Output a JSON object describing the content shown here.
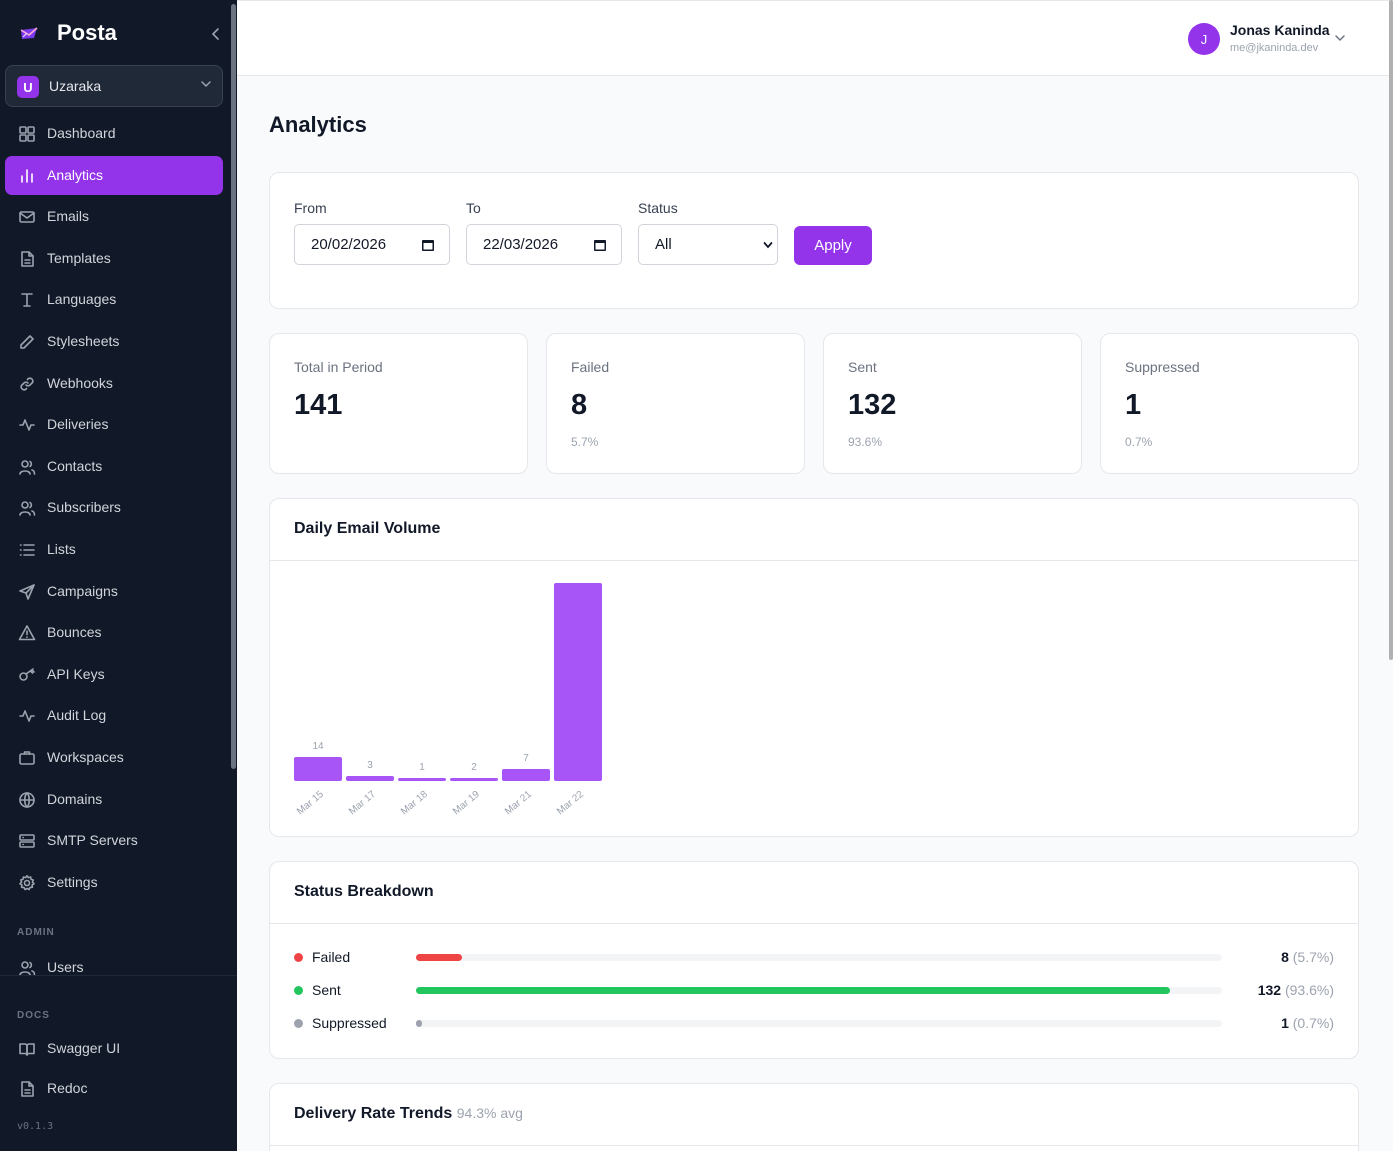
{
  "app": {
    "name": "Posta",
    "version": "v0.1.3"
  },
  "workspace": {
    "initial": "U",
    "name": "Uzaraka"
  },
  "nav": {
    "items": [
      {
        "label": "Dashboard",
        "icon": "grid-icon"
      },
      {
        "label": "Analytics",
        "icon": "bar-chart-icon",
        "active": true
      },
      {
        "label": "Emails",
        "icon": "mail-icon"
      },
      {
        "label": "Templates",
        "icon": "file-text-icon"
      },
      {
        "label": "Languages",
        "icon": "type-icon"
      },
      {
        "label": "Stylesheets",
        "icon": "pencil-icon"
      },
      {
        "label": "Webhooks",
        "icon": "link-icon"
      },
      {
        "label": "Deliveries",
        "icon": "activity-icon"
      },
      {
        "label": "Contacts",
        "icon": "users-icon"
      },
      {
        "label": "Subscribers",
        "icon": "users-icon"
      },
      {
        "label": "Lists",
        "icon": "list-icon"
      },
      {
        "label": "Campaigns",
        "icon": "send-icon"
      },
      {
        "label": "Bounces",
        "icon": "alert-triangle-icon"
      },
      {
        "label": "API Keys",
        "icon": "key-icon"
      },
      {
        "label": "Audit Log",
        "icon": "activity-icon"
      },
      {
        "label": "Workspaces",
        "icon": "briefcase-icon"
      },
      {
        "label": "Domains",
        "icon": "globe-icon"
      },
      {
        "label": "SMTP Servers",
        "icon": "server-icon"
      },
      {
        "label": "Settings",
        "icon": "gear-icon"
      }
    ],
    "admin_label": "ADMIN",
    "admin_items": [
      {
        "label": "Users",
        "icon": "users-icon"
      }
    ],
    "docs_label": "DOCS",
    "docs_items": [
      {
        "label": "Swagger UI",
        "icon": "book-icon"
      },
      {
        "label": "Redoc",
        "icon": "file-text-icon"
      }
    ]
  },
  "user": {
    "initial": "J",
    "name": "Jonas Kaninda",
    "email": "me@jkaninda.dev"
  },
  "page": {
    "title": "Analytics"
  },
  "filters": {
    "from_label": "From",
    "from_value": "20/02/2026",
    "to_label": "To",
    "to_value": "22/03/2026",
    "status_label": "Status",
    "status_value": "All",
    "apply_label": "Apply"
  },
  "stats": [
    {
      "label": "Total in Period",
      "value": "141",
      "pct": ""
    },
    {
      "label": "Failed",
      "value": "8",
      "pct": "5.7%"
    },
    {
      "label": "Sent",
      "value": "132",
      "pct": "93.6%"
    },
    {
      "label": "Suppressed",
      "value": "1",
      "pct": "0.7%"
    }
  ],
  "daily_volume": {
    "title": "Daily Email Volume"
  },
  "chart_data": {
    "type": "bar",
    "title": "Daily Email Volume",
    "categories": [
      "Mar 15",
      "Mar 17",
      "Mar 18",
      "Mar 19",
      "Mar 21",
      "Mar 22"
    ],
    "values": [
      14,
      3,
      1,
      2,
      7,
      114
    ],
    "data_labels": [
      "14",
      "3",
      "1",
      "2",
      "7",
      ""
    ],
    "color": "#a855f7"
  },
  "status_breakdown": {
    "title": "Status Breakdown",
    "rows": [
      {
        "name": "Failed",
        "count": "8",
        "pct_text": "(5.7%)",
        "fraction": 0.057,
        "color": "#ef4444"
      },
      {
        "name": "Sent",
        "count": "132",
        "pct_text": "(93.6%)",
        "fraction": 0.936,
        "color": "#22c55e"
      },
      {
        "name": "Suppressed",
        "count": "1",
        "pct_text": "(0.7%)",
        "fraction": 0.007,
        "color": "#9ca3af"
      }
    ]
  },
  "delivery_trends": {
    "title": "Delivery Rate Trends",
    "avg": "94.3% avg"
  },
  "colors": {
    "accent": "#9333ea",
    "sidebar_bg": "#111827"
  }
}
